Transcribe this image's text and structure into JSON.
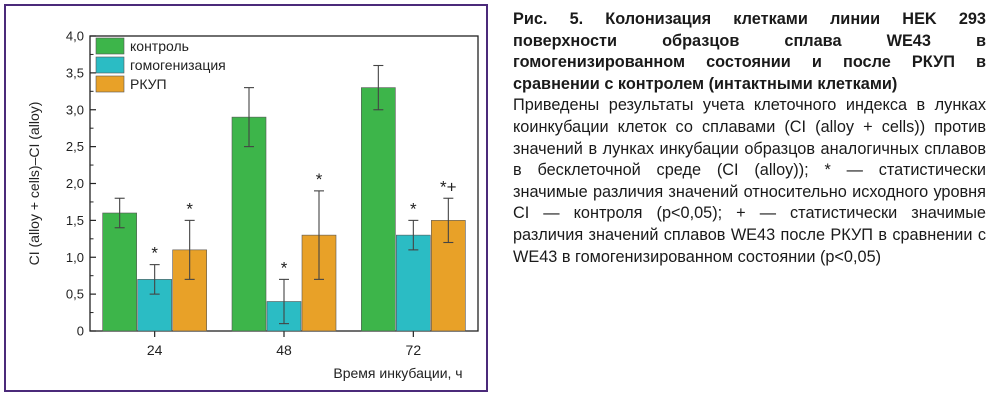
{
  "chart_data": {
    "type": "bar",
    "categories": [
      "24",
      "48",
      "72"
    ],
    "series": [
      {
        "name": "контроль",
        "color": "#3db54a",
        "values": [
          1.6,
          2.9,
          3.3
        ],
        "errors": [
          0.2,
          0.4,
          0.3
        ],
        "marks": [
          "",
          "",
          ""
        ]
      },
      {
        "name": "гомогенизация",
        "color": "#2bbcc4",
        "values": [
          0.7,
          0.4,
          1.3
        ],
        "errors": [
          0.2,
          0.3,
          0.2
        ],
        "marks": [
          "*",
          "*",
          "*"
        ]
      },
      {
        "name": "РКУП",
        "color": "#e8a128",
        "values": [
          1.1,
          1.3,
          1.5
        ],
        "errors": [
          0.4,
          0.6,
          0.3
        ],
        "marks": [
          "*",
          "*",
          "*+"
        ]
      }
    ],
    "xlabel": "Время инкубации, ч",
    "ylabel": "CI (alloy + cells)–CI (alloy)",
    "ylim": [
      0,
      4.0
    ],
    "yticks": [
      "0",
      "0,5",
      "1,0",
      "1,5",
      "2,0",
      "2,5",
      "3,0",
      "3,5",
      "4,0"
    ],
    "legend_position": "top-left"
  },
  "caption": {
    "title": "Рис. 5. Колонизация клетками линии HEK 293 поверхности образцов сплава WE43 в гомогенизированном состоянии и после РКУП в сравнении с контролем (интактными клетками)",
    "body": "Приведены результаты учета клеточного индекса в лунках коинкубации клеток со сплавами (CI (alloy + cells)) против значений в лунках инкубации образцов аналогичных сплавов в бесклеточной среде (CI (alloy)); * — статистически значимые различия значений относительно исходного уровня CI — контроля (p<0,05); + — статистически значимые различия значений сплавов WE43 после РКУП в сравнении с WE43 в гомогенизированном состоянии (p<0,05)"
  }
}
